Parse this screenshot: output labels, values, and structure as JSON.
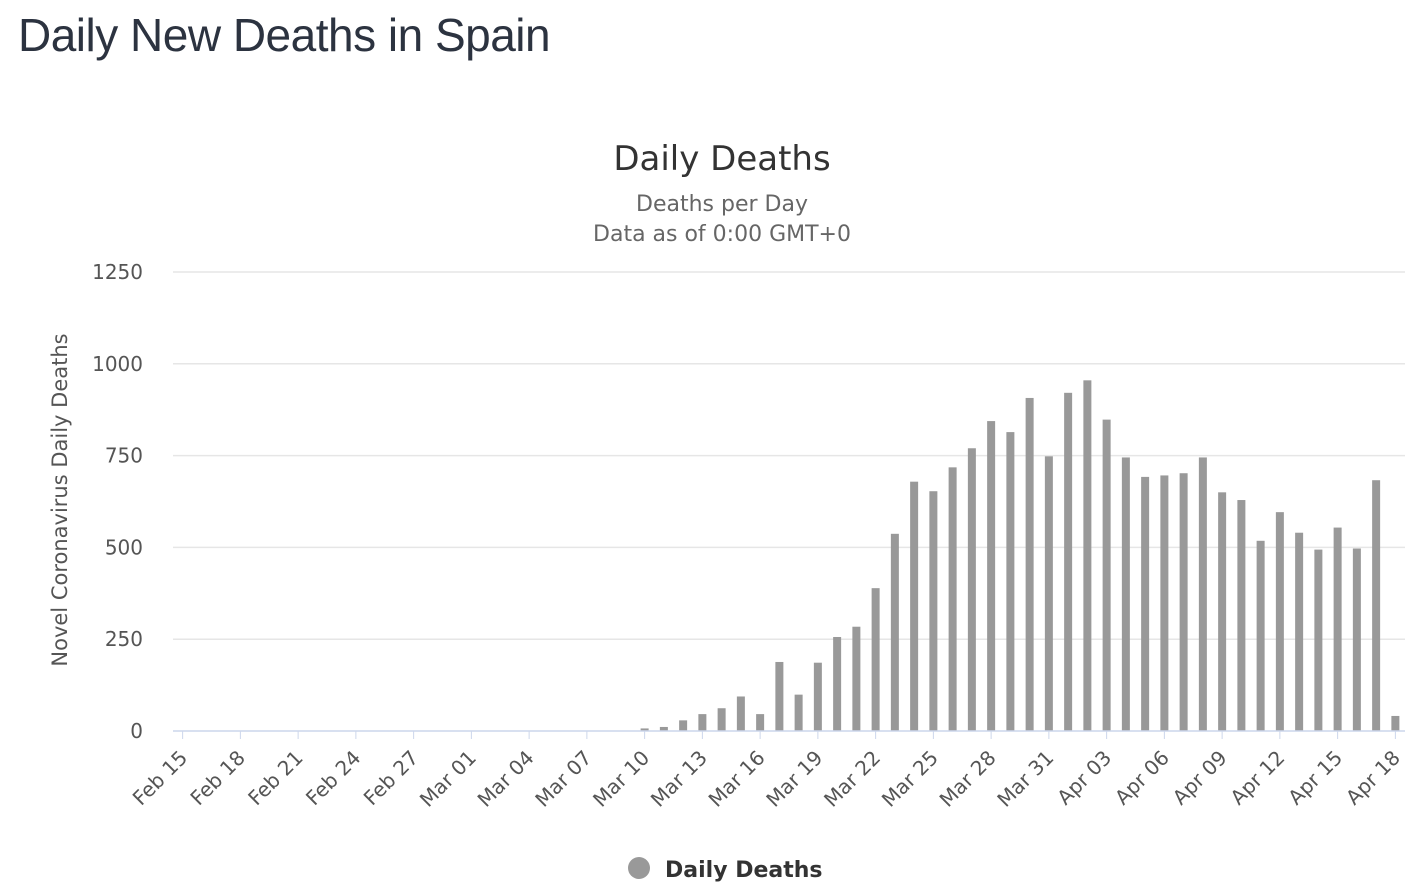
{
  "page": {
    "title": "Daily New Deaths in Spain"
  },
  "chart_data": {
    "type": "bar",
    "title": "Daily Deaths",
    "subtitle": [
      "Deaths per Day",
      "Data as of 0:00 GMT+0"
    ],
    "ylabel": "Novel Coronavirus Daily Deaths",
    "xlabel": "",
    "ylim": [
      0,
      1250
    ],
    "yticks": [
      0,
      250,
      500,
      750,
      1000,
      1250
    ],
    "grid": true,
    "legend_position": "bottom-center",
    "bar_color": "#999999",
    "x_tick_labels": [
      "Feb 15",
      "Feb 18",
      "Feb 21",
      "Feb 24",
      "Feb 27",
      "Mar 01",
      "Mar 04",
      "Mar 07",
      "Mar 10",
      "Mar 13",
      "Mar 16",
      "Mar 19",
      "Mar 22",
      "Mar 25",
      "Mar 28",
      "Mar 31",
      "Apr 03",
      "Apr 06",
      "Apr 09",
      "Apr 12",
      "Apr 15",
      "Apr 18"
    ],
    "categories": [
      "Feb 15",
      "Feb 16",
      "Feb 17",
      "Feb 18",
      "Feb 19",
      "Feb 20",
      "Feb 21",
      "Feb 22",
      "Feb 23",
      "Feb 24",
      "Feb 25",
      "Feb 26",
      "Feb 27",
      "Feb 28",
      "Feb 29",
      "Mar 01",
      "Mar 02",
      "Mar 03",
      "Mar 04",
      "Mar 05",
      "Mar 06",
      "Mar 07",
      "Mar 08",
      "Mar 09",
      "Mar 10",
      "Mar 11",
      "Mar 12",
      "Mar 13",
      "Mar 14",
      "Mar 15",
      "Mar 16",
      "Mar 17",
      "Mar 18",
      "Mar 19",
      "Mar 20",
      "Mar 21",
      "Mar 22",
      "Mar 23",
      "Mar 24",
      "Mar 25",
      "Mar 26",
      "Mar 27",
      "Mar 28",
      "Mar 29",
      "Mar 30",
      "Mar 31",
      "Apr 01",
      "Apr 02",
      "Apr 03",
      "Apr 04",
      "Apr 05",
      "Apr 06",
      "Apr 07",
      "Apr 08",
      "Apr 09",
      "Apr 10",
      "Apr 11",
      "Apr 12",
      "Apr 13",
      "Apr 14",
      "Apr 15",
      "Apr 16",
      "Apr 17",
      "Apr 18"
    ],
    "series": [
      {
        "name": "Daily Deaths",
        "values": [
          0,
          0,
          0,
          0,
          0,
          0,
          0,
          0,
          0,
          0,
          0,
          0,
          0,
          0,
          0,
          0,
          0,
          0,
          0,
          0,
          0,
          0,
          0,
          0,
          7,
          11,
          29,
          46,
          62,
          94,
          46,
          188,
          99,
          186,
          256,
          284,
          389,
          537,
          679,
          653,
          718,
          770,
          844,
          814,
          907,
          748,
          921,
          955,
          848,
          745,
          692,
          696,
          702,
          745,
          650,
          629,
          518,
          596,
          540,
          494,
          554,
          497,
          683,
          41
        ]
      }
    ]
  }
}
